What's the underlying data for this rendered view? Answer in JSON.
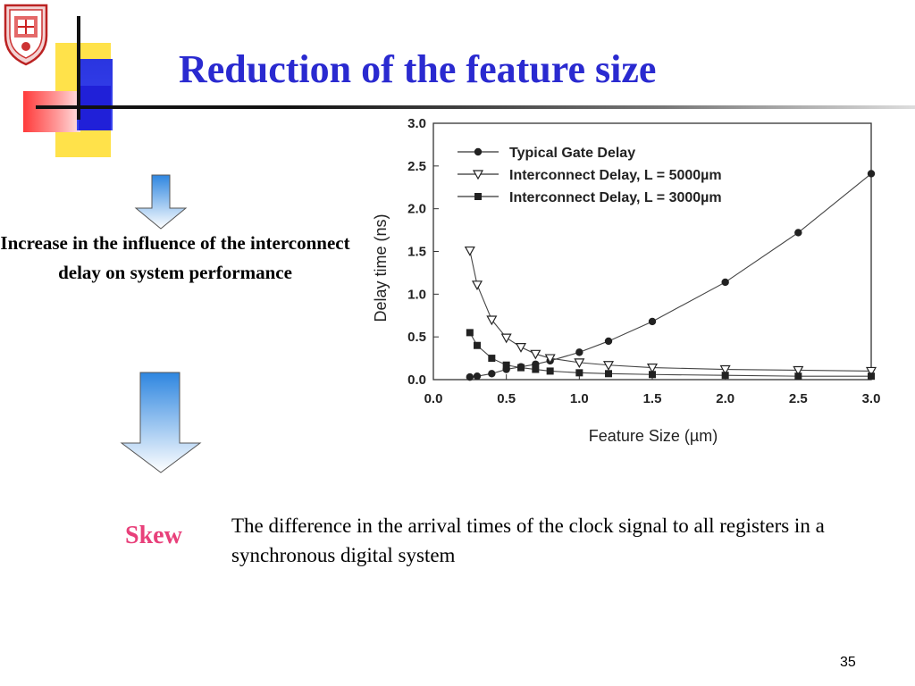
{
  "slide": {
    "title": "Reduction of the feature size",
    "lead_text": "Increase in the influence of the interconnect delay on system performance",
    "skew_word": "Skew",
    "skew_definition": "The difference in the arrival times of the clock signal to all registers in a synchronous digital system",
    "page_number": "35",
    "colors": {
      "title": "#2a2ad0",
      "skew": "#e8407a",
      "arrow_top": "#2e86e0",
      "arrow_bottom": "#ffffff"
    }
  },
  "chart_data": {
    "type": "line",
    "title": "",
    "xlabel": "Feature Size (µm)",
    "ylabel": "Delay time (ns)",
    "xlim": [
      0.0,
      3.0
    ],
    "ylim": [
      0.0,
      3.0
    ],
    "xticks": [
      "0.0",
      "0.5",
      "1.0",
      "1.5",
      "2.0",
      "2.5",
      "3.0"
    ],
    "yticks": [
      "0.0",
      "0.5",
      "1.0",
      "1.5",
      "2.0",
      "2.5",
      "3.0"
    ],
    "grid": false,
    "legend_position": "top-left",
    "series": [
      {
        "name": "Typical Gate Delay",
        "marker": "circle",
        "x": [
          0.25,
          0.3,
          0.4,
          0.5,
          0.6,
          0.7,
          0.8,
          1.0,
          1.2,
          1.5,
          2.0,
          2.5,
          3.0
        ],
        "values": [
          0.03,
          0.04,
          0.07,
          0.12,
          0.15,
          0.18,
          0.22,
          0.32,
          0.45,
          0.68,
          1.14,
          1.72,
          2.41
        ]
      },
      {
        "name": "Interconnect Delay, L = 5000µm",
        "marker": "triangle-down",
        "x": [
          0.25,
          0.3,
          0.4,
          0.5,
          0.6,
          0.7,
          0.8,
          1.0,
          1.2,
          1.5,
          2.0,
          2.5,
          3.0
        ],
        "values": [
          1.51,
          1.11,
          0.7,
          0.49,
          0.38,
          0.3,
          0.25,
          0.2,
          0.17,
          0.14,
          0.12,
          0.11,
          0.1
        ]
      },
      {
        "name": "Interconnect Delay, L = 3000µm",
        "marker": "square",
        "x": [
          0.25,
          0.3,
          0.4,
          0.5,
          0.6,
          0.7,
          0.8,
          1.0,
          1.2,
          1.5,
          2.0,
          2.5,
          3.0
        ],
        "values": [
          0.55,
          0.4,
          0.25,
          0.17,
          0.14,
          0.12,
          0.1,
          0.08,
          0.07,
          0.06,
          0.05,
          0.04,
          0.04
        ]
      }
    ]
  }
}
